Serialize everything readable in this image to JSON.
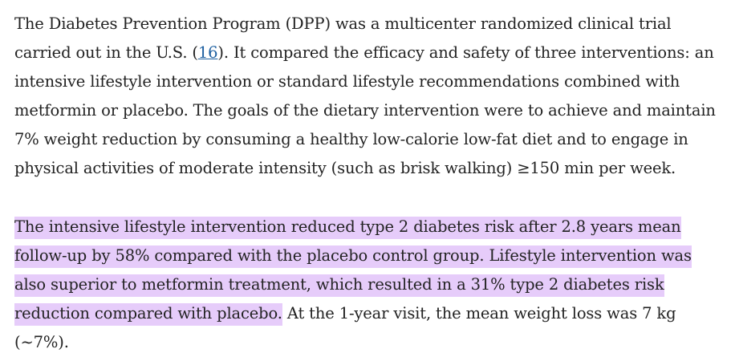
{
  "paragraph1": {
    "text_before_ref": "The Diabetes Prevention Program (DPP) was a multicenter randomized clinical trial carried out in the U.S. (",
    "ref_label": "16",
    "text_after_ref": "). It compared the efficacy and safety of three interventions: an intensive lifestyle intervention or standard lifestyle recommendations combined with metformin or placebo. The goals of the dietary intervention were to achieve and maintain 7% weight reduction by consuming a healthy low-calorie low-fat diet and to engage in physical activities of moderate intensity (such as brisk walking) ≥150 min per week."
  },
  "paragraph2": {
    "highlighted_text": "The intensive lifestyle intervention reduced type 2 diabetes risk after 2.8 years mean follow-up by 58% compared with the placebo control group. Lifestyle intervention was also superior to metformin treatment, which resulted in a 31% type 2 diabetes risk reduction compared with placebo.",
    "plain_text": " At the 1-year visit, the mean weight loss was 7 kg (∼7%)."
  },
  "highlight_color": "#e6ccfa",
  "link_color": "#1d5fa0"
}
